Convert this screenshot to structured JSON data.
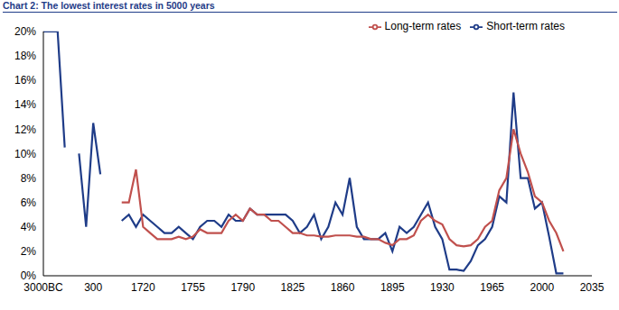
{
  "chart_data": {
    "type": "line",
    "title": "Chart 2: The lowest interest rates in 5000 years",
    "categories": [
      "3000BC",
      null,
      null,
      null,
      null,
      null,
      null,
      "300",
      null,
      null,
      null,
      null,
      null,
      null,
      "1720",
      null,
      null,
      null,
      null,
      null,
      null,
      "1755",
      null,
      null,
      null,
      null,
      null,
      null,
      "1790",
      null,
      null,
      null,
      null,
      null,
      null,
      "1825",
      null,
      null,
      null,
      null,
      null,
      null,
      "1860",
      null,
      null,
      null,
      null,
      null,
      null,
      "1895",
      null,
      null,
      null,
      null,
      null,
      null,
      "1930",
      null,
      null,
      null,
      null,
      null,
      null,
      "1965",
      null,
      null,
      null,
      null,
      null,
      null,
      "2000",
      null,
      null,
      null,
      null,
      null,
      null,
      "2035"
    ],
    "series": [
      {
        "name": "Short-term rates",
        "color": "#1f3c88",
        "values": [
          20,
          20,
          20,
          10.5,
          null,
          10,
          4,
          12.5,
          8.3,
          null,
          null,
          4.5,
          5,
          4,
          5,
          4.5,
          4,
          3.5,
          3.5,
          4,
          3.5,
          3,
          4,
          4.5,
          4.5,
          4,
          5,
          4.5,
          4.5,
          5.5,
          5,
          5,
          5,
          5,
          5,
          4.5,
          3.5,
          4,
          5,
          3,
          4,
          6,
          5,
          8,
          4,
          3,
          3,
          3,
          3.5,
          2,
          4,
          3.5,
          4,
          5,
          6,
          4,
          3,
          0.5,
          0.5,
          0.4,
          1.2,
          2.5,
          3,
          4,
          6.5,
          6,
          15,
          8,
          8,
          5.5,
          6,
          3.2,
          0.2,
          0.2,
          null,
          null,
          null,
          null
        ]
      },
      {
        "name": "Long-term rates",
        "color": "#c0504d",
        "values": [
          null,
          null,
          null,
          null,
          null,
          null,
          null,
          null,
          null,
          null,
          null,
          6,
          6,
          8.7,
          4,
          3.5,
          3,
          3,
          3,
          3.2,
          3,
          3.2,
          3.8,
          3.5,
          3.5,
          3.5,
          4.5,
          5,
          4.5,
          5.5,
          5,
          5,
          4.5,
          4.5,
          4,
          3.5,
          3.5,
          3.3,
          3.3,
          3.2,
          3.2,
          3.3,
          3.3,
          3.3,
          3.2,
          3.2,
          3,
          3,
          2.7,
          2.5,
          3,
          3,
          3.3,
          4.5,
          5,
          4.5,
          4.2,
          3,
          2.5,
          2.4,
          2.5,
          3,
          4,
          4.5,
          7,
          8,
          12,
          10,
          8.5,
          6.5,
          6,
          4.5,
          3.5,
          2,
          null,
          null,
          null,
          null
        ]
      }
    ],
    "ylim": [
      0,
      20
    ],
    "yticks": [
      {
        "value": 0,
        "label": "0%"
      },
      {
        "value": 2,
        "label": "2%"
      },
      {
        "value": 4,
        "label": "4%"
      },
      {
        "value": 6,
        "label": "6%"
      },
      {
        "value": 8,
        "label": "8%"
      },
      {
        "value": 10,
        "label": "10%"
      },
      {
        "value": 12,
        "label": "12%"
      },
      {
        "value": 14,
        "label": "14%"
      },
      {
        "value": 16,
        "label": "16%"
      },
      {
        "value": 18,
        "label": "18%"
      },
      {
        "value": 20,
        "label": "20%"
      }
    ],
    "grid": false,
    "legend": "upper right"
  }
}
